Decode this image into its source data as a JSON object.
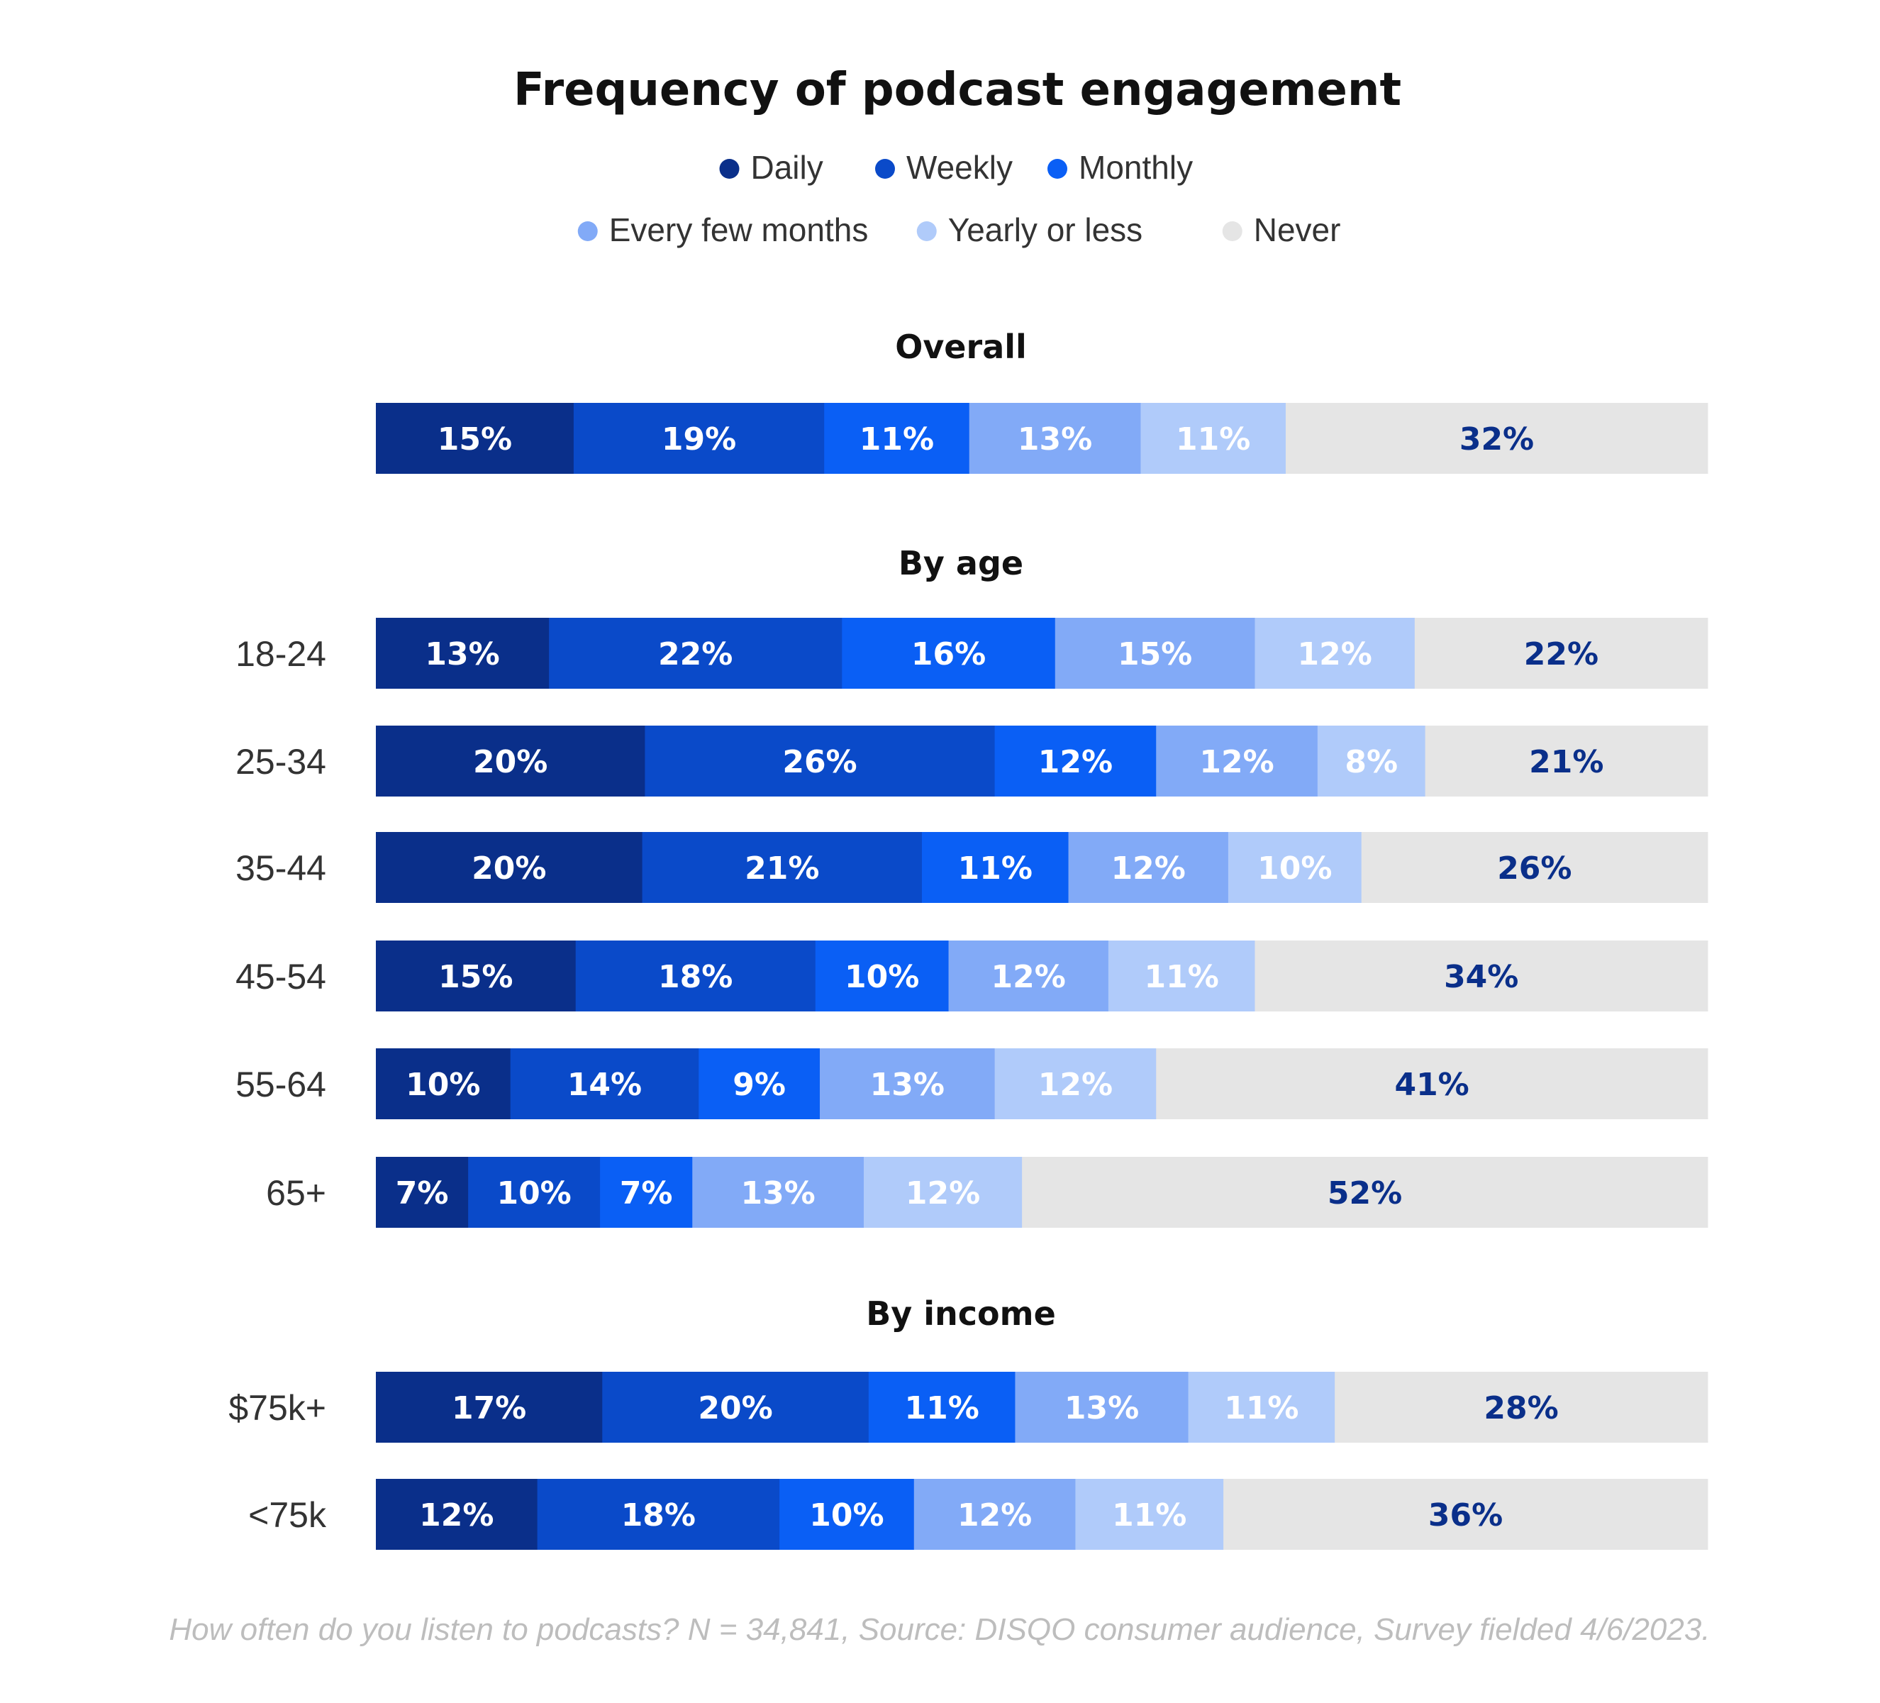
{
  "chart_data": {
    "type": "bar",
    "orientation": "horizontal",
    "stacked": true,
    "title": "Frequency of podcast engagement",
    "legend_position": "top",
    "legend_order": [
      "Daily",
      "Weekly",
      "Monthly",
      "Every few months",
      "Yearly or less",
      "Never"
    ],
    "series": [
      {
        "name": "Daily",
        "color": "#0a2f8a"
      },
      {
        "name": "Weekly",
        "color": "#0a4ac9"
      },
      {
        "name": "Monthly",
        "color": "#0a5ff5"
      },
      {
        "name": "Every few months",
        "color": "#82aaf7"
      },
      {
        "name": "Yearly or less",
        "color": "#b0cbfa"
      },
      {
        "name": "Never",
        "color": "#e5e5e5"
      }
    ],
    "sections": [
      {
        "title": "Overall",
        "rows": [
          {
            "label": "",
            "values": [
              15,
              19,
              11,
              13,
              11,
              32
            ],
            "value_labels": [
              "15%",
              "19%",
              "11%",
              "13%",
              "11%",
              "32%"
            ]
          }
        ]
      },
      {
        "title": "By age",
        "rows": [
          {
            "label": "18-24",
            "values": [
              13,
              22,
              16,
              15,
              12,
              22
            ],
            "value_labels": [
              "13%",
              "22%",
              "16%",
              "15%",
              "12%",
              "22%"
            ]
          },
          {
            "label": "25-34",
            "values": [
              20,
              26,
              12,
              12,
              8,
              21
            ],
            "value_labels": [
              "20%",
              "26%",
              "12%",
              "12%",
              "8%",
              "21%"
            ]
          },
          {
            "label": "35-44",
            "values": [
              20,
              21,
              11,
              12,
              10,
              26
            ],
            "value_labels": [
              "20%",
              "21%",
              "11%",
              "12%",
              "10%",
              "26%"
            ]
          },
          {
            "label": "45-54",
            "values": [
              15,
              18,
              10,
              12,
              11,
              34
            ],
            "value_labels": [
              "15%",
              "18%",
              "10%",
              "12%",
              "11%",
              "34%"
            ]
          },
          {
            "label": "55-64",
            "values": [
              10,
              14,
              9,
              13,
              12,
              41
            ],
            "value_labels": [
              "10%",
              "14%",
              "9%",
              "13%",
              "12%",
              "41%"
            ]
          },
          {
            "label": "65+",
            "values": [
              7,
              10,
              7,
              13,
              12,
              52
            ],
            "value_labels": [
              "7%",
              "10%",
              "7%",
              "13%",
              "12%",
              "52%"
            ]
          }
        ]
      },
      {
        "title": "By income",
        "rows": [
          {
            "label": "$75k+",
            "values": [
              17,
              20,
              11,
              13,
              11,
              28
            ],
            "value_labels": [
              "17%",
              "20%",
              "11%",
              "13%",
              "11%",
              "28%"
            ]
          },
          {
            "label": "<75k",
            "values": [
              12,
              18,
              10,
              12,
              11,
              36
            ],
            "value_labels": [
              "12%",
              "18%",
              "10%",
              "12%",
              "11%",
              "36%"
            ]
          }
        ]
      }
    ],
    "label_colors": {
      "dark_bg": "#ffffff",
      "never_bg": "#0a2f8a"
    },
    "grid": false
  },
  "footnote": "How often do you listen to podcasts? N = 34,841, Source: DISQO consumer audience, Survey fielded 4/6/2023."
}
